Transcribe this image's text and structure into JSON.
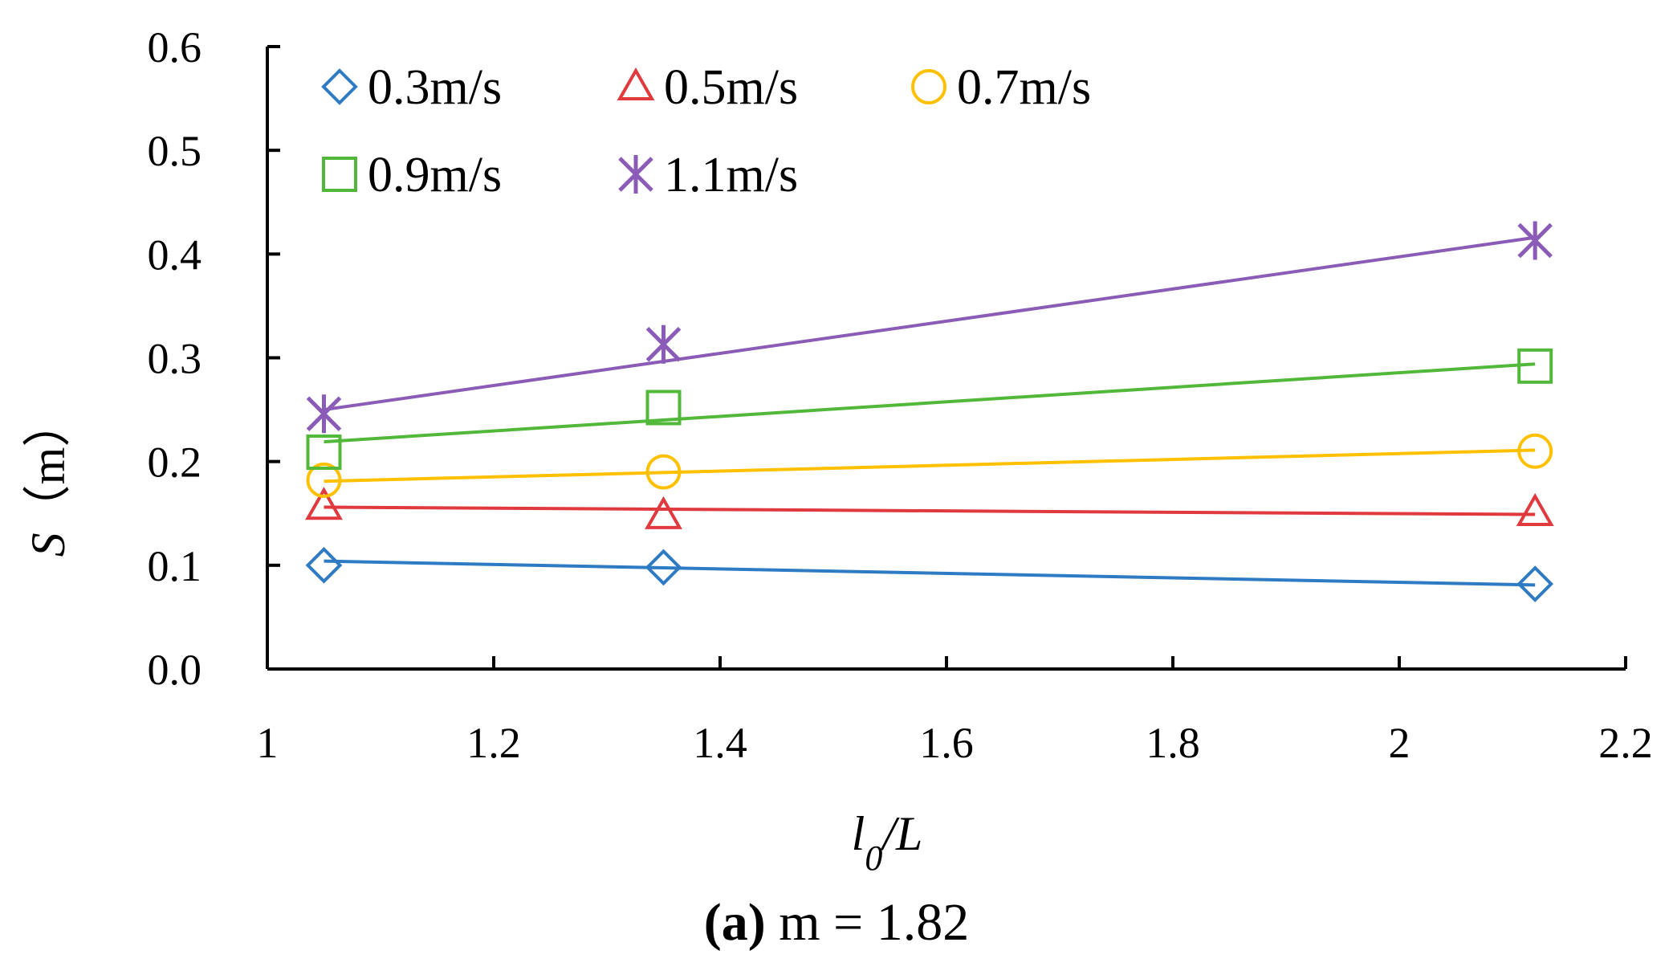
{
  "chart_data": {
    "type": "scatter",
    "xlabel_main": "l",
    "xlabel_sub": "0",
    "xlabel_rest": "/L",
    "ylabel_var": "S",
    "ylabel_unit": "（m）",
    "xlim": [
      1,
      2.2
    ],
    "ylim": [
      0,
      0.6
    ],
    "xticks": [
      "1",
      "1.2",
      "1.4",
      "1.6",
      "1.8",
      "2",
      "2.2"
    ],
    "yticks": [
      "0.0",
      "0.1",
      "0.2",
      "0.3",
      "0.4",
      "0.5",
      "0.6"
    ],
    "grid": false,
    "legend_position": "top-left",
    "x": [
      1.05,
      1.35,
      2.12
    ],
    "series": [
      {
        "name": "0.3m/s",
        "marker": "diamond",
        "color": "#2E7BC4",
        "values": [
          0.1,
          0.098,
          0.082
        ],
        "trend": [
          0.104,
          0.081
        ]
      },
      {
        "name": "0.5m/s",
        "marker": "triangle",
        "color": "#E0393E",
        "values": [
          0.157,
          0.148,
          0.151
        ],
        "trend": [
          0.156,
          0.149
        ]
      },
      {
        "name": "0.7m/s",
        "marker": "circle",
        "color": "#FFC000",
        "values": [
          0.182,
          0.19,
          0.21
        ],
        "trend": [
          0.181,
          0.211
        ]
      },
      {
        "name": "0.9m/s",
        "marker": "square",
        "color": "#52B83A",
        "values": [
          0.209,
          0.252,
          0.292
        ],
        "trend": [
          0.219,
          0.294
        ]
      },
      {
        "name": "1.1m/s",
        "marker": "asterisk",
        "color": "#8A5CB8",
        "values": [
          0.246,
          0.313,
          0.413
        ],
        "trend": [
          0.25,
          0.416
        ]
      }
    ]
  },
  "caption": {
    "letter": "(a)",
    "text": " m = 1.82"
  }
}
